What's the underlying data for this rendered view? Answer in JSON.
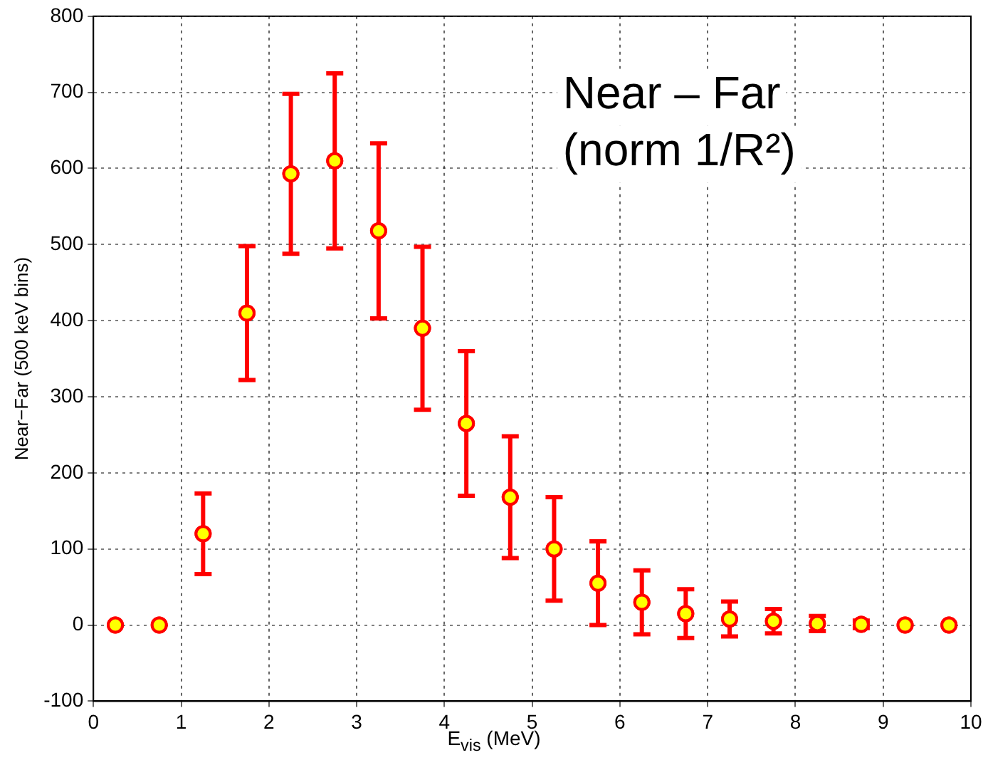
{
  "chart_data": {
    "type": "scatter",
    "xlabel": "E$_{vis}$ (MeV)",
    "ylabel": "Near−Far (500 keV bins)",
    "annotations": [
      "Near – Far",
      "(norm 1/R²)"
    ],
    "x": [
      0.25,
      0.75,
      1.25,
      1.75,
      2.25,
      2.75,
      3.25,
      3.75,
      4.25,
      4.75,
      5.25,
      5.75,
      6.25,
      6.75,
      7.25,
      7.75,
      8.25,
      8.75,
      9.25,
      9.75
    ],
    "series": [
      {
        "color": "#ff0000",
        "values": [
          0,
          0,
          120,
          410,
          593,
          610,
          518,
          390,
          265,
          168,
          100,
          55,
          30,
          15,
          8,
          5,
          2,
          1,
          0,
          0
        ],
        "errors": [
          null,
          null,
          53,
          88,
          105,
          115,
          115,
          107,
          95,
          80,
          68,
          55,
          42,
          32,
          23,
          16,
          10,
          5,
          null,
          null
        ]
      }
    ],
    "xlim": [
      0,
      10
    ],
    "xticks": [
      0,
      1,
      2,
      3,
      4,
      5,
      6,
      7,
      8,
      9,
      10
    ],
    "ylim": [
      -100,
      800
    ],
    "yticks": [
      -100,
      0,
      100,
      200,
      300,
      400,
      500,
      600,
      700,
      800
    ],
    "grid": true,
    "marker": "circle",
    "legend": false
  }
}
